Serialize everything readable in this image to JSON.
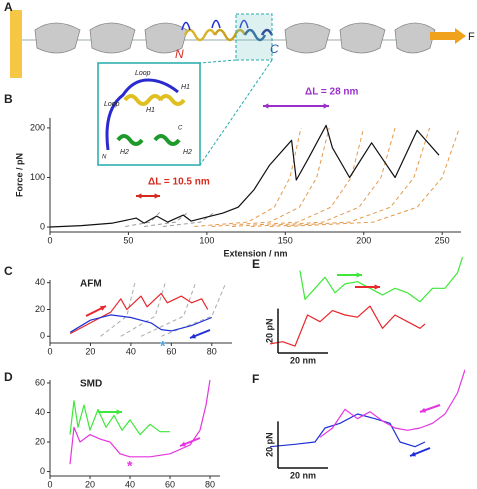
{
  "figure": {
    "panel_labels": [
      "A",
      "B",
      "C",
      "D",
      "E",
      "F"
    ],
    "diagram": {
      "n_term": "N",
      "c_term": "C",
      "force": "F",
      "inset": {
        "loop_left": "Loop",
        "loop_top": "Loop",
        "h1_left": "H1",
        "h1_right": "H1",
        "h2_left": "H2",
        "h2_right": "H2",
        "n": "N",
        "c": "C"
      }
    }
  },
  "chart_data": [
    {
      "type": "line",
      "xlabel": "Extension / nm",
      "ylabel": "Force / pN",
      "xlim": [
        0,
        262
      ],
      "ylim": [
        -10,
        220
      ],
      "xticks": [
        0,
        50,
        100,
        150,
        200,
        250
      ],
      "yticks": [
        0,
        100,
        200
      ],
      "annotations": [
        {
          "text": "ΔL = 10.5 nm",
          "color": "#d62a1e"
        },
        {
          "text": "ΔL = 28 nm",
          "color": "#9b2fc9"
        }
      ],
      "series": [
        {
          "color": "#999999",
          "dashed": true,
          "x": [
            48,
            64,
            70
          ],
          "values": [
            1,
            10,
            30
          ]
        },
        {
          "color": "#999999",
          "dashed": true,
          "x": [
            60,
            80,
            88
          ],
          "values": [
            1,
            10,
            30
          ]
        },
        {
          "color": "#999999",
          "dashed": true,
          "x": [
            72,
            96,
            105
          ],
          "values": [
            1,
            10,
            30
          ]
        },
        {
          "color": "#e39a4c",
          "dashed": true,
          "x": [
            92,
            126,
            143,
            153,
            160
          ],
          "values": [
            1,
            10,
            40,
            100,
            200
          ]
        },
        {
          "color": "#e39a4c",
          "dashed": true,
          "x": [
            103,
            140,
            159,
            170,
            178
          ],
          "values": [
            1,
            10,
            40,
            100,
            200
          ]
        },
        {
          "color": "#e39a4c",
          "dashed": true,
          "x": [
            116,
            158,
            179,
            192,
            200
          ],
          "values": [
            1,
            10,
            40,
            100,
            200
          ]
        },
        {
          "color": "#e39a4c",
          "dashed": true,
          "x": [
            128,
            174,
            197,
            211,
            220
          ],
          "values": [
            1,
            10,
            40,
            100,
            200
          ]
        },
        {
          "color": "#e39a4c",
          "dashed": true,
          "x": [
            140,
            191,
            217,
            232,
            242
          ],
          "values": [
            1,
            10,
            40,
            100,
            200
          ]
        },
        {
          "color": "#e39a4c",
          "dashed": true,
          "x": [
            151,
            206,
            234,
            250,
            261
          ],
          "values": [
            1,
            10,
            40,
            100,
            200
          ]
        },
        {
          "color": "#111111",
          "dashed": false,
          "x": [
            0,
            20,
            40,
            55,
            60,
            68,
            75,
            85,
            90,
            100,
            110,
            120,
            130,
            140,
            154,
            157,
            165,
            176,
            180,
            191,
            205,
            220,
            234,
            248
          ],
          "values": [
            0,
            3,
            8,
            18,
            8,
            22,
            10,
            24,
            12,
            20,
            28,
            40,
            75,
            125,
            175,
            95,
            140,
            205,
            160,
            100,
            170,
            100,
            195,
            145
          ]
        }
      ]
    },
    {
      "type": "line",
      "label": "AFM",
      "xlim": [
        0,
        90
      ],
      "ylim": [
        -5,
        42
      ],
      "xticks": [
        0,
        20,
        40,
        60,
        80
      ],
      "yticks": [
        0,
        20,
        40
      ],
      "annotations": [
        {
          "text": "*",
          "color": "#4aa3df"
        }
      ],
      "series": [
        {
          "color": "#aaaaaa",
          "dashed": true,
          "x": [
            25,
            38,
            42
          ],
          "values": [
            0,
            15,
            40
          ]
        },
        {
          "color": "#aaaaaa",
          "dashed": true,
          "x": [
            35,
            52,
            57
          ],
          "values": [
            0,
            15,
            40
          ]
        },
        {
          "color": "#aaaaaa",
          "dashed": true,
          "x": [
            45,
            66,
            72
          ],
          "values": [
            0,
            15,
            40
          ]
        },
        {
          "color": "#aaaaaa",
          "dashed": true,
          "x": [
            55,
            80,
            87
          ],
          "values": [
            0,
            15,
            40
          ]
        },
        {
          "color": "#e8262b",
          "dashed": false,
          "x": [
            10,
            20,
            30,
            35,
            38,
            45,
            48,
            55,
            58,
            65,
            70,
            75,
            78
          ],
          "values": [
            2,
            10,
            18,
            28,
            20,
            30,
            22,
            32,
            25,
            30,
            25,
            28,
            20
          ]
        },
        {
          "color": "#1f2fd6",
          "dashed": false,
          "x": [
            10,
            20,
            30,
            40,
            50,
            55,
            60,
            70,
            80
          ],
          "values": [
            3,
            12,
            16,
            14,
            10,
            5,
            4,
            8,
            14
          ]
        }
      ]
    },
    {
      "type": "line",
      "label": "SMD",
      "xlim": [
        0,
        85
      ],
      "ylim": [
        -3,
        62
      ],
      "xticks": [
        0,
        20,
        40,
        60,
        80
      ],
      "yticks": [
        0,
        20,
        40,
        60
      ],
      "annotations": [
        {
          "text": "*",
          "color": "#e535e0"
        }
      ],
      "series": [
        {
          "color": "#3ee83a",
          "dashed": false,
          "x": [
            10,
            12,
            14,
            17,
            20,
            24,
            28,
            32,
            36,
            40,
            45,
            50,
            55,
            60
          ],
          "values": [
            25,
            48,
            30,
            45,
            28,
            42,
            30,
            38,
            28,
            35,
            25,
            32,
            27,
            27
          ]
        },
        {
          "color": "#e535e0",
          "dashed": false,
          "x": [
            10,
            12,
            15,
            20,
            25,
            30,
            35,
            40,
            50,
            60,
            70,
            75,
            78,
            80
          ],
          "values": [
            5,
            30,
            20,
            25,
            22,
            20,
            12,
            10,
            10,
            12,
            18,
            28,
            45,
            62
          ]
        }
      ]
    },
    {
      "type": "line",
      "xlim": [
        0,
        78
      ],
      "ylim": [
        0,
        45
      ],
      "scalebar_x": {
        "value": 20,
        "label": "20 nm"
      },
      "scalebar_y": {
        "value": 20,
        "label": "20 pN"
      },
      "series": [
        {
          "color": "#e8262b",
          "dashed": false,
          "x": [
            0,
            5,
            10,
            15,
            20,
            25,
            30,
            35,
            40,
            45,
            50,
            55,
            60,
            62
          ],
          "values": [
            5,
            6,
            4,
            18,
            15,
            20,
            18,
            17,
            22,
            12,
            18,
            15,
            12,
            14
          ]
        },
        {
          "color": "#3ee83a",
          "dashed": false,
          "x": [
            12,
            14,
            18,
            22,
            26,
            30,
            35,
            40,
            45,
            50,
            55,
            60,
            65,
            70,
            75,
            77
          ],
          "values": [
            38,
            25,
            30,
            35,
            28,
            32,
            33,
            30,
            27,
            30,
            28,
            24,
            30,
            30,
            37,
            44
          ]
        }
      ]
    },
    {
      "type": "line",
      "xlim": [
        0,
        78
      ],
      "ylim": [
        0,
        45
      ],
      "scalebar_x": {
        "value": 20,
        "label": "20 nm"
      },
      "scalebar_y": {
        "value": 20,
        "label": "20 pN"
      },
      "series": [
        {
          "color": "#1f2fd6",
          "dashed": false,
          "x": [
            0,
            10,
            18,
            22,
            28,
            35,
            42,
            48,
            52,
            58,
            62
          ],
          "values": [
            10,
            11,
            12,
            18,
            20,
            24,
            22,
            20,
            12,
            10,
            12
          ]
        },
        {
          "color": "#e535e0",
          "dashed": false,
          "x": [
            20,
            25,
            30,
            35,
            40,
            45,
            50,
            55,
            60,
            65,
            70,
            75,
            78
          ],
          "values": [
            14,
            18,
            26,
            22,
            25,
            21,
            18,
            17,
            18,
            20,
            24,
            33,
            43
          ]
        }
      ]
    }
  ]
}
